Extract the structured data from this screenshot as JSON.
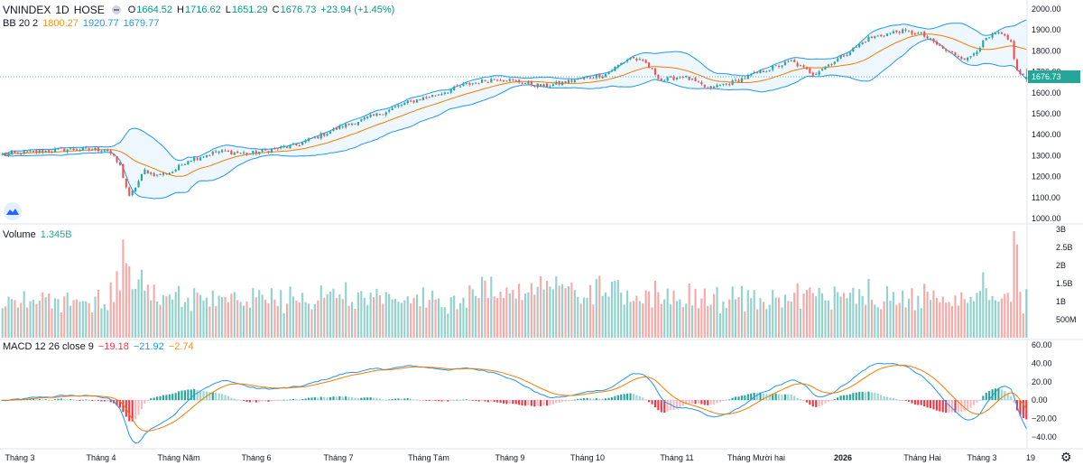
{
  "header": {
    "symbol": "VNINDEX",
    "interval": "1D",
    "exchange": "HOSE",
    "o_label": "O",
    "o_value": "1664.52",
    "h_label": "H",
    "h_value": "1716.62",
    "l_label": "L",
    "l_value": "1651.29",
    "c_label": "C",
    "c_value": "1676.73",
    "change": "+23.94 (+1.45%)"
  },
  "bb_legend": {
    "name": "BB 20 2",
    "basis": "1800.27",
    "upper": "1920.77",
    "lower": "1679.77"
  },
  "volume_legend": {
    "name": "Volume",
    "value": "1.345B"
  },
  "macd_legend": {
    "name": "MACD 12 26 close 9",
    "hist": "−19.18",
    "macd": "−21.92",
    "signal": "−2.74"
  },
  "price_axis": {
    "ticks": [
      "2000.00",
      "1900.00",
      "1800.00",
      "1700.00",
      "1600.00",
      "1500.00",
      "1400.00",
      "1300.00",
      "1200.00",
      "1100.00",
      "1000.00"
    ],
    "last_label": "1676.73"
  },
  "volume_axis": {
    "ticks": [
      "3B",
      "2.5B",
      "2B",
      "1.5B",
      "1B",
      "500M"
    ]
  },
  "macd_axis": {
    "ticks": [
      "60.00",
      "40.00",
      "20.00",
      "0.00",
      "−20.00",
      "−40.00"
    ]
  },
  "time_axis": {
    "labels": [
      "Tháng 3",
      "Tháng 4",
      "Tháng Năm",
      "Tháng 6",
      "Tháng 7",
      "Tháng Tám",
      "Tháng 9",
      "Tháng 10",
      "Tháng 11",
      "Tháng Mười hai",
      "2026",
      "Tháng Hai",
      "Tháng 3",
      "19"
    ]
  },
  "colors": {
    "up": "#26a69a",
    "down": "#ef5350",
    "bb_basis": "#f57c00",
    "bb_band": "#2196f3",
    "macd": "#2196f3",
    "signal": "#f57c00",
    "hist_up": "#26a69a",
    "hist_down": "#f23645"
  },
  "chart_data": [
    {
      "type": "candlestick",
      "title": "VNINDEX 1D HOSE",
      "ylim": [
        990,
        2000
      ],
      "x_range": [
        "Tháng 3",
        "19"
      ],
      "anchors": [
        [
          0,
          1305
        ],
        [
          20,
          1330
        ],
        [
          34,
          1330
        ],
        [
          38,
          1250
        ],
        [
          41,
          1100
        ],
        [
          46,
          1230
        ],
        [
          50,
          1205
        ],
        [
          55,
          1225
        ],
        [
          60,
          1280
        ],
        [
          70,
          1320
        ],
        [
          80,
          1310
        ],
        [
          95,
          1350
        ],
        [
          110,
          1440
        ],
        [
          122,
          1500
        ],
        [
          130,
          1550
        ],
        [
          140,
          1590
        ],
        [
          150,
          1640
        ],
        [
          160,
          1670
        ],
        [
          168,
          1650
        ],
        [
          175,
          1630
        ],
        [
          185,
          1660
        ],
        [
          195,
          1690
        ],
        [
          203,
          1770
        ],
        [
          208,
          1740
        ],
        [
          213,
          1660
        ],
        [
          220,
          1680
        ],
        [
          228,
          1620
        ],
        [
          236,
          1650
        ],
        [
          245,
          1700
        ],
        [
          255,
          1750
        ],
        [
          262,
          1690
        ],
        [
          272,
          1780
        ],
        [
          280,
          1860
        ],
        [
          290,
          1895
        ],
        [
          297,
          1880
        ],
        [
          305,
          1800
        ],
        [
          312,
          1760
        ],
        [
          318,
          1855
        ],
        [
          322,
          1885
        ],
        [
          326,
          1840
        ],
        [
          328,
          1700
        ],
        [
          331,
          1677
        ]
      ]
    },
    {
      "type": "area",
      "title": "BB 20 2",
      "series": [
        {
          "name": "basis",
          "last": 1800.27
        },
        {
          "name": "upper",
          "last": 1920.77
        },
        {
          "name": "lower",
          "last": 1679.77
        }
      ]
    },
    {
      "type": "bar",
      "title": "Volume",
      "ylim": [
        0,
        3000000000
      ],
      "last": 1345000000
    },
    {
      "type": "line",
      "title": "MACD 12 26 close 9",
      "ylim": [
        -50,
        60
      ],
      "series": [
        {
          "name": "MACD",
          "last": -21.92
        },
        {
          "name": "signal",
          "last": -2.74
        },
        {
          "name": "histogram",
          "last": -19.18
        }
      ]
    }
  ]
}
